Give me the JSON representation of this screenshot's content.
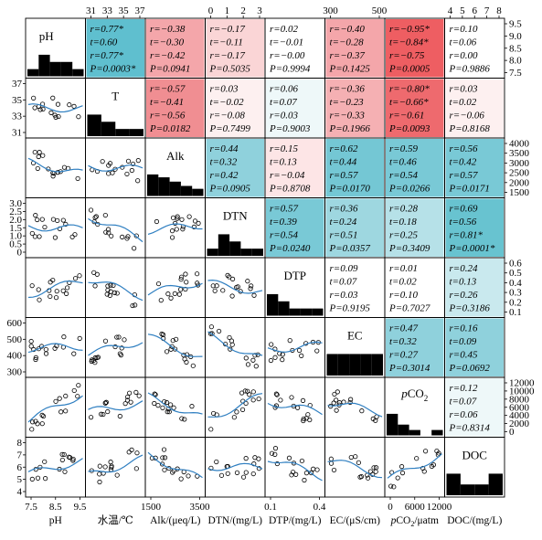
{
  "chart_data": {
    "type": "scatter-matrix",
    "variables": [
      {
        "key": "pH",
        "diag_label": "pH",
        "axis_label": "pH",
        "range": [
          7.2,
          9.5
        ],
        "hist": [
          1,
          3,
          2,
          2,
          1
        ]
      },
      {
        "key": "T",
        "diag_label": "T",
        "axis_label": "水温/℃",
        "range": [
          31,
          37
        ],
        "hist": [
          3,
          2,
          1,
          1
        ]
      },
      {
        "key": "Alk",
        "diag_label": "Alk",
        "axis_label": "Alk/(μeq/L)",
        "range": [
          1000,
          4500
        ],
        "hist": [
          3,
          2.6,
          2,
          1.4,
          1
        ]
      },
      {
        "key": "DTN",
        "diag_label": "DTN",
        "axis_label": "DTN/(mg/L)",
        "range": [
          0,
          3
        ],
        "hist": [
          1,
          3,
          2,
          1,
          1
        ]
      },
      {
        "key": "DTP",
        "diag_label": "DTP",
        "axis_label": "DTP/(mg/L)",
        "range": [
          0,
          0.7
        ],
        "hist": [
          3,
          2,
          1,
          1,
          1
        ]
      },
      {
        "key": "EC",
        "diag_label": "EC",
        "axis_label": "EC/(μS/cm)",
        "range": [
          150,
          700
        ],
        "hist": [
          1,
          1,
          1,
          1,
          1
        ]
      },
      {
        "key": "pCO2",
        "diag_label": "pCO2",
        "axis_label": "pCO2/μatm",
        "range": [
          0,
          13000
        ],
        "hist": [
          4,
          2,
          1,
          0,
          1
        ]
      },
      {
        "key": "DOC",
        "diag_label": "DOC",
        "axis_label": "DOC/(mg/L)",
        "range": [
          3.8,
          8
        ],
        "hist": [
          2,
          1,
          1,
          2
        ]
      }
    ],
    "top_ticks": {
      "1": [
        "31",
        "33",
        "35",
        "37"
      ],
      "3": [
        "0",
        "1",
        "2",
        "3"
      ],
      "5": [
        "300",
        "500"
      ],
      "7": [
        "4",
        "5",
        "6",
        "7",
        "8"
      ]
    },
    "right_ticks": {
      "0": [
        "9.5",
        "9.0",
        "8.5",
        "8.0",
        "7.5"
      ],
      "2": [
        "4000",
        "3500",
        "3000",
        "2500",
        "2000",
        "1500"
      ],
      "4": [
        "0.6",
        "0.5",
        "0.4",
        "0.3",
        "0.2",
        "0.1"
      ],
      "6": [
        "12000",
        "10000",
        "8000",
        "6000",
        "4000",
        "2000",
        "0"
      ]
    },
    "left_ticks": {
      "1": [
        "37",
        "35",
        "33",
        "31"
      ],
      "3": [
        "3.0",
        "2.5",
        "2.0",
        "1.5",
        "1.0",
        "0.5",
        "0"
      ],
      "5": [
        "600",
        "500",
        "400",
        "300"
      ],
      "7": [
        "8",
        "7",
        "6",
        "5",
        "4"
      ]
    },
    "bottom_ticks": {
      "0": [
        "7.5",
        "8.5",
        "9.5"
      ],
      "2": [
        "1500",
        "3500"
      ],
      "4": [
        "0.1",
        "0.4"
      ],
      "6": [
        "0",
        "6000",
        "12000"
      ]
    },
    "correlations": [
      {
        "row": 0,
        "col": 1,
        "lines": [
          "r=0.77*",
          "t=0.60",
          "r=0.77*",
          "P=0.0003*"
        ],
        "color": "#5fbfcf"
      },
      {
        "row": 0,
        "col": 2,
        "lines": [
          "r=−0.38",
          "t=−0.30",
          "r=−0.42",
          "P=0.0941"
        ],
        "color": "#f4a6aa"
      },
      {
        "row": 0,
        "col": 3,
        "lines": [
          "r=−0.17",
          "t=−0.11",
          "r=−0.17",
          "P=0.5035"
        ],
        "color": "#fad5d6"
      },
      {
        "row": 0,
        "col": 4,
        "lines": [
          "r=0.02",
          "t=−0.01",
          "r=−0.00",
          "P=0.9994"
        ],
        "color": "#ffffff"
      },
      {
        "row": 0,
        "col": 5,
        "lines": [
          "r=−0.40",
          "t=−0.28",
          "r=−0.37",
          "P=0.1425"
        ],
        "color": "#f4a6aa"
      },
      {
        "row": 0,
        "col": 6,
        "lines": [
          "r=−0.95*",
          "t=−0.84*",
          "r=−0.75",
          "P=0.0005"
        ],
        "color": "#ee5e62"
      },
      {
        "row": 0,
        "col": 7,
        "lines": [
          "r=0.10",
          "t=0.06",
          "r=0.00",
          "P=0.9886"
        ],
        "color": "#ffffff"
      },
      {
        "row": 1,
        "col": 2,
        "lines": [
          "r=−0.57",
          "t=−0.41",
          "r=−0.56",
          "P=0.0182"
        ],
        "color": "#f08e92"
      },
      {
        "row": 1,
        "col": 3,
        "lines": [
          "r=0.03",
          "t=−0.02",
          "r=−0.08",
          "P=0.7499"
        ],
        "color": "#fdf0f0"
      },
      {
        "row": 1,
        "col": 4,
        "lines": [
          "r=0.06",
          "t=0.07",
          "r=0.03",
          "P=0.9003"
        ],
        "color": "#eef8f9"
      },
      {
        "row": 1,
        "col": 5,
        "lines": [
          "r=−0.36",
          "t=−0.23",
          "r=−0.33",
          "P=0.1966"
        ],
        "color": "#f5b0b3"
      },
      {
        "row": 1,
        "col": 6,
        "lines": [
          "r=−0.80*",
          "t=−0.66*",
          "r=−0.61",
          "P=0.0093"
        ],
        "color": "#ee6a6e"
      },
      {
        "row": 1,
        "col": 7,
        "lines": [
          "r=0.03",
          "t=0.02",
          "r=−0.06",
          "P=0.8168"
        ],
        "color": "#fdf0f0"
      },
      {
        "row": 2,
        "col": 3,
        "lines": [
          "r=0.44",
          "t=0.32",
          "r=0.42",
          "P=0.0905"
        ],
        "color": "#8fd1dc"
      },
      {
        "row": 2,
        "col": 4,
        "lines": [
          "r=0.15",
          "t=0.13",
          "r=−0.04",
          "P=0.8708"
        ],
        "color": "#fde5e6"
      },
      {
        "row": 2,
        "col": 5,
        "lines": [
          "r=0.62",
          "t=0.44",
          "r=0.57",
          "P=0.0170"
        ],
        "color": "#74c7d4"
      },
      {
        "row": 2,
        "col": 6,
        "lines": [
          "r=0.59",
          "t=0.46",
          "r=0.54",
          "P=0.0266"
        ],
        "color": "#79c9d6"
      },
      {
        "row": 2,
        "col": 7,
        "lines": [
          "r=0.56",
          "t=0.42",
          "r=0.57",
          "P=0.0171"
        ],
        "color": "#79c9d6"
      },
      {
        "row": 3,
        "col": 4,
        "lines": [
          "r=0.57",
          "t=0.39",
          "r=0.54",
          "P=0.0240"
        ],
        "color": "#79c9d6"
      },
      {
        "row": 3,
        "col": 5,
        "lines": [
          "r=0.36",
          "t=0.24",
          "r=0.51",
          "P=0.0357"
        ],
        "color": "#9ed7e0"
      },
      {
        "row": 3,
        "col": 6,
        "lines": [
          "r=0.28",
          "t=0.18",
          "r=0.25",
          "P=0.3409"
        ],
        "color": "#b6e1e8"
      },
      {
        "row": 3,
        "col": 7,
        "lines": [
          "r=0.69",
          "t=0.56",
          "r=0.81*",
          "P=0.0001*"
        ],
        "color": "#68c3d0"
      },
      {
        "row": 4,
        "col": 5,
        "lines": [
          "r=0.09",
          "t=0.07",
          "r=0.03",
          "P=0.9195"
        ],
        "color": "#ffffff"
      },
      {
        "row": 4,
        "col": 6,
        "lines": [
          "r=0.01",
          "t=0.02",
          "r=0.10",
          "P=0.7027"
        ],
        "color": "#ffffff"
      },
      {
        "row": 4,
        "col": 7,
        "lines": [
          "r=0.24",
          "t=0.13",
          "r=0.26",
          "P=0.3186"
        ],
        "color": "#c9e9ee"
      },
      {
        "row": 5,
        "col": 6,
        "lines": [
          "r=0.47",
          "t=0.32",
          "r=0.27",
          "P=0.3014"
        ],
        "color": "#8fd1dc"
      },
      {
        "row": 5,
        "col": 7,
        "lines": [
          "r=0.16",
          "t=0.09",
          "r=0.45",
          "P=0.0692"
        ],
        "color": "#8fd1dc"
      },
      {
        "row": 6,
        "col": 7,
        "lines": [
          "r=0.12",
          "t=0.07",
          "r=0.06",
          "P=0.8314"
        ],
        "color": "#eef8f9"
      }
    ]
  }
}
